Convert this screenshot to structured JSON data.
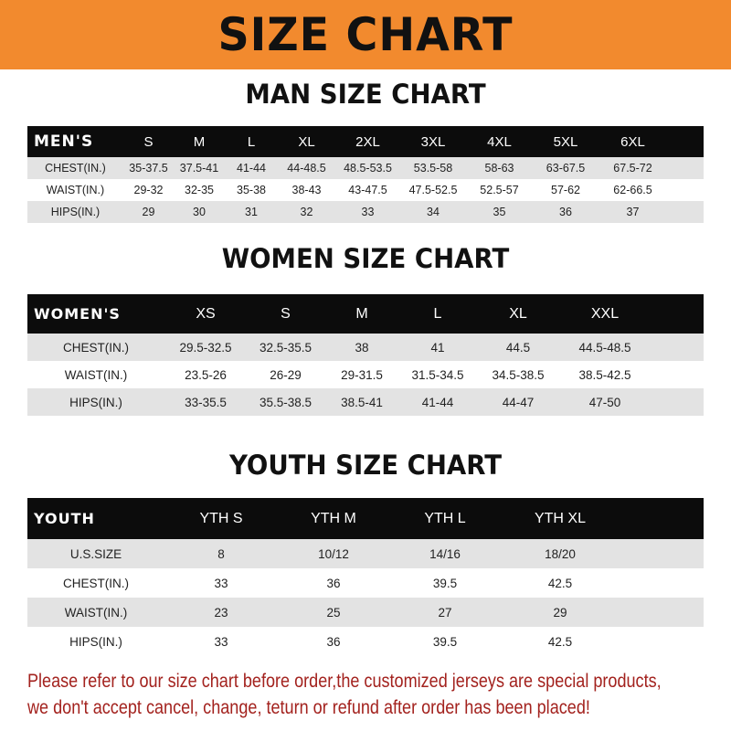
{
  "title": "SIZE CHART",
  "men": {
    "heading": "MAN SIZE CHART",
    "label": "MEN'S",
    "sizes": [
      "S",
      "M",
      "L",
      "XL",
      "2XL",
      "3XL",
      "4XL",
      "5XL",
      "6XL"
    ],
    "rows": [
      {
        "label": "CHEST(IN.)",
        "values": [
          "35-37.5",
          "37.5-41",
          "41-44",
          "44-48.5",
          "48.5-53.5",
          "53.5-58",
          "58-63",
          "63-67.5",
          "67.5-72"
        ]
      },
      {
        "label": "WAIST(IN.)",
        "values": [
          "29-32",
          "32-35",
          "35-38",
          "38-43",
          "43-47.5",
          "47.5-52.5",
          "52.5-57",
          "57-62",
          "62-66.5"
        ]
      },
      {
        "label": "HIPS(IN.)",
        "values": [
          "29",
          "30",
          "31",
          "32",
          "33",
          "34",
          "35",
          "36",
          "37"
        ]
      }
    ]
  },
  "women": {
    "heading": "WOMEN SIZE CHART",
    "label": "WOMEN'S",
    "sizes": [
      "XS",
      "S",
      "M",
      "L",
      "XL",
      "XXL"
    ],
    "rows": [
      {
        "label": "CHEST(IN.)",
        "values": [
          "29.5-32.5",
          "32.5-35.5",
          "38",
          "41",
          "44.5",
          "44.5-48.5"
        ]
      },
      {
        "label": "WAIST(IN.)",
        "values": [
          "23.5-26",
          "26-29",
          "29-31.5",
          "31.5-34.5",
          "34.5-38.5",
          "38.5-42.5"
        ]
      },
      {
        "label": "HIPS(IN.)",
        "values": [
          "33-35.5",
          "35.5-38.5",
          "38.5-41",
          "41-44",
          "44-47",
          "47-50"
        ]
      }
    ]
  },
  "youth": {
    "heading": "YOUTH SIZE CHART",
    "label": "YOUTH",
    "sizes": [
      "YTH S",
      "YTH M",
      "YTH L",
      "YTH XL"
    ],
    "rows": [
      {
        "label": "U.S.SIZE",
        "values": [
          "8",
          "10/12",
          "14/16",
          "18/20"
        ]
      },
      {
        "label": "CHEST(IN.)",
        "values": [
          "33",
          "36",
          "39.5",
          "42.5"
        ]
      },
      {
        "label": "WAIST(IN.)",
        "values": [
          "23",
          "25",
          "27",
          "29"
        ]
      },
      {
        "label": "HIPS(IN.)",
        "values": [
          "33",
          "36",
          "39.5",
          "42.5"
        ]
      }
    ]
  },
  "notice": [
    "Please refer to our size chart before order,the customized jerseys are special products,",
    "we don't accept cancel, change, teturn or refund after order has been placed!"
  ],
  "colors": {
    "banner": "#f28a2e",
    "header_row": "#0c0c0c",
    "shaded_row": "#e3e3e3",
    "notice": "#a3221e"
  }
}
